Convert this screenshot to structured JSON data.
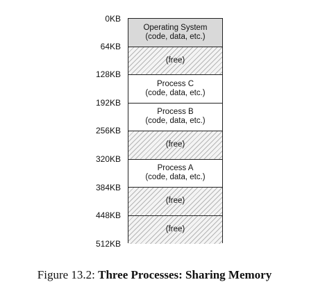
{
  "addresses": [
    "0KB",
    "64KB",
    "128KB",
    "192KB",
    "256KB",
    "320KB",
    "384KB",
    "448KB",
    "512KB"
  ],
  "segments": [
    {
      "type": "os",
      "name": "Operating System",
      "detail": "(code, data, etc.)"
    },
    {
      "type": "free",
      "name": "(free)",
      "detail": ""
    },
    {
      "type": "proc",
      "name": "Process C",
      "detail": "(code, data, etc.)"
    },
    {
      "type": "proc",
      "name": "Process B",
      "detail": "(code, data, etc.)"
    },
    {
      "type": "free",
      "name": "(free)",
      "detail": ""
    },
    {
      "type": "proc",
      "name": "Process A",
      "detail": "(code, data, etc.)"
    },
    {
      "type": "free",
      "name": "(free)",
      "detail": ""
    },
    {
      "type": "free",
      "name": "(free)",
      "detail": ""
    }
  ],
  "caption": {
    "prefix": "Figure 13.2:",
    "title": "Three Processes: Sharing Memory"
  }
}
